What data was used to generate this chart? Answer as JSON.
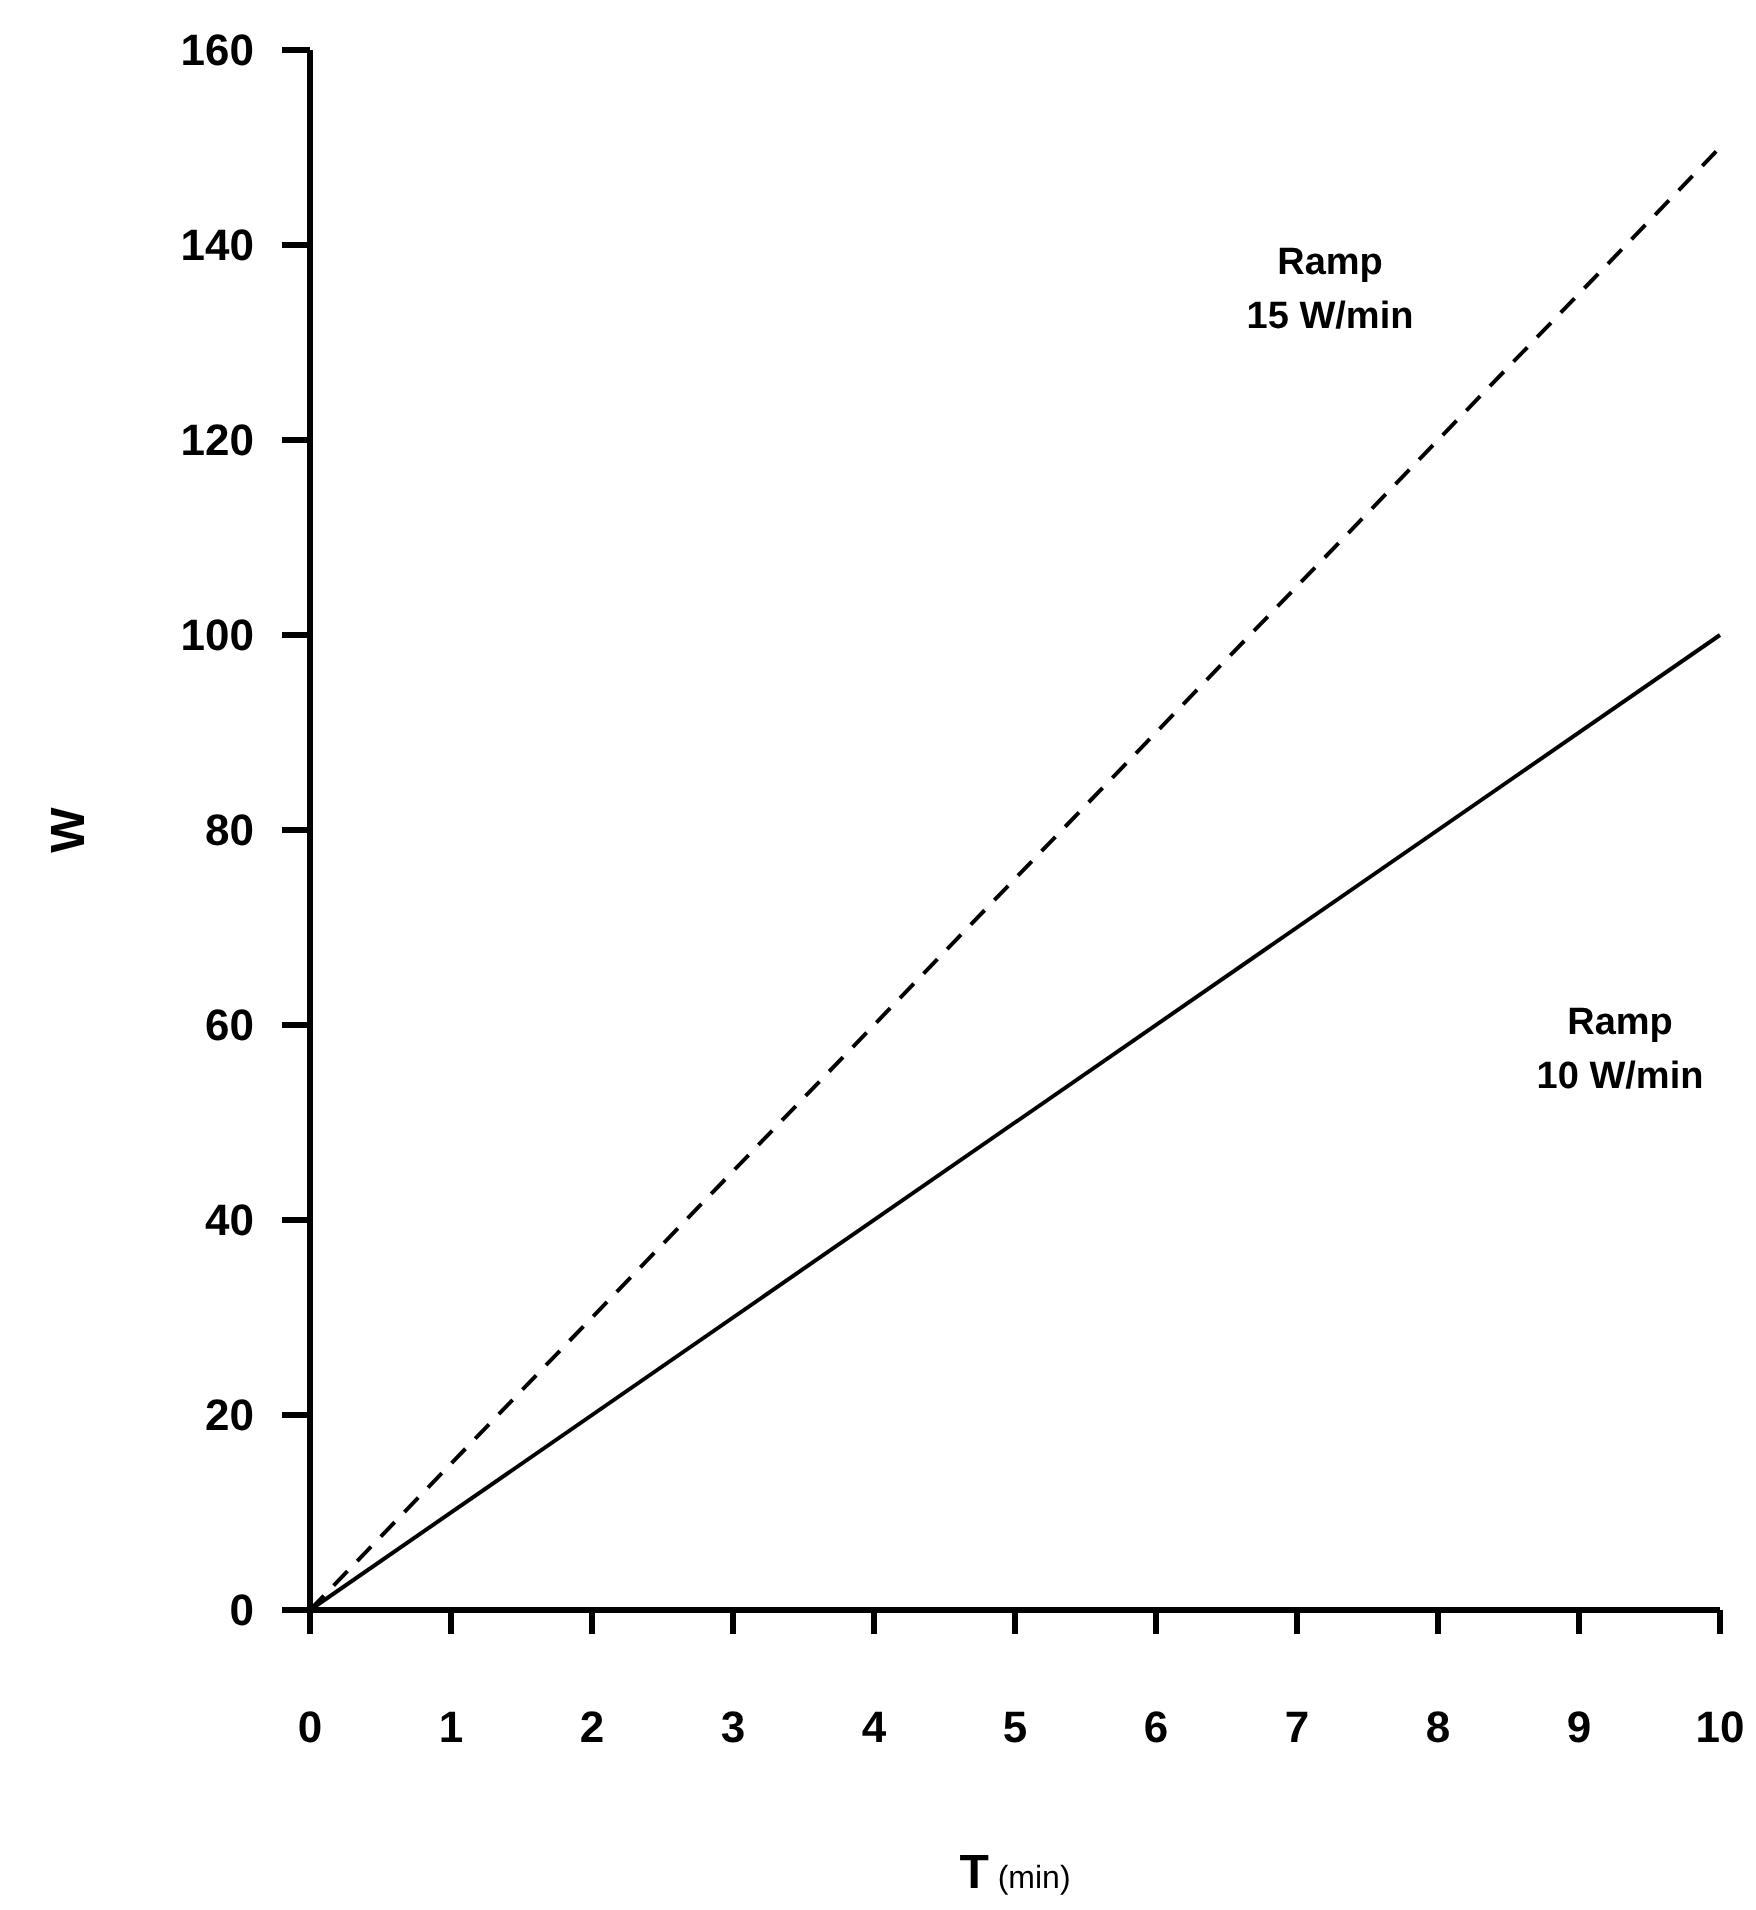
{
  "chart_data": {
    "type": "line",
    "xlabel": "T (min)",
    "ylabel": "W",
    "xlim": [
      0,
      10
    ],
    "ylim": [
      0,
      160
    ],
    "xticks": [
      0,
      1,
      2,
      3,
      4,
      5,
      6,
      7,
      8,
      9,
      10
    ],
    "yticks": [
      0,
      20,
      40,
      60,
      80,
      100,
      120,
      140,
      160
    ],
    "grid": false,
    "x": [
      0,
      10
    ],
    "series": [
      {
        "color": "#000000",
        "line_style": "dashed",
        "values": [
          0,
          150
        ]
      },
      {
        "color": "#000000",
        "line_style": "solid",
        "values": [
          0,
          100
        ]
      }
    ],
    "annotations": [
      "Ramp\n15 W/min",
      "Ramp\n10 W/min"
    ]
  }
}
